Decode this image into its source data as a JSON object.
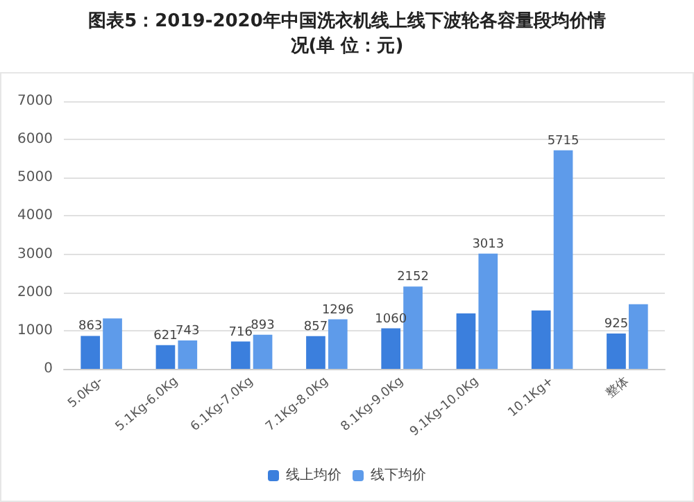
{
  "chart_data": {
    "type": "bar",
    "title": "图表5：2019-2020年中国洗衣机线上线下波轮各容量段均价情况(单 位：元)",
    "categories": [
      "5.0Kg-",
      "5.1Kg-6.0Kg",
      "6.1Kg-7.0Kg",
      "7.1Kg-8.0Kg",
      "8.1Kg-9.0Kg",
      "9.1Kg-10.0Kg",
      "10.1Kg+",
      "整体"
    ],
    "series": [
      {
        "name": "线上均价",
        "color": "#3b7fdd",
        "values": [
          863,
          621,
          716,
          857,
          1060,
          1450,
          1530,
          925
        ],
        "value_labels": [
          "863",
          "621",
          "716",
          "857",
          "1060",
          null,
          null,
          "925"
        ]
      },
      {
        "name": "线下均价",
        "color": "#5e9bea",
        "values": [
          1320,
          743,
          893,
          1296,
          2152,
          3013,
          5715,
          1690
        ],
        "value_labels": [
          null,
          "743",
          "893",
          "1296",
          "2152",
          "3013",
          "5715",
          null
        ]
      }
    ],
    "ylim": [
      0,
      7000
    ],
    "yticks": [
      0,
      1000,
      2000,
      3000,
      4000,
      5000,
      6000,
      7000
    ],
    "grid": "y",
    "legend": "bottom"
  }
}
